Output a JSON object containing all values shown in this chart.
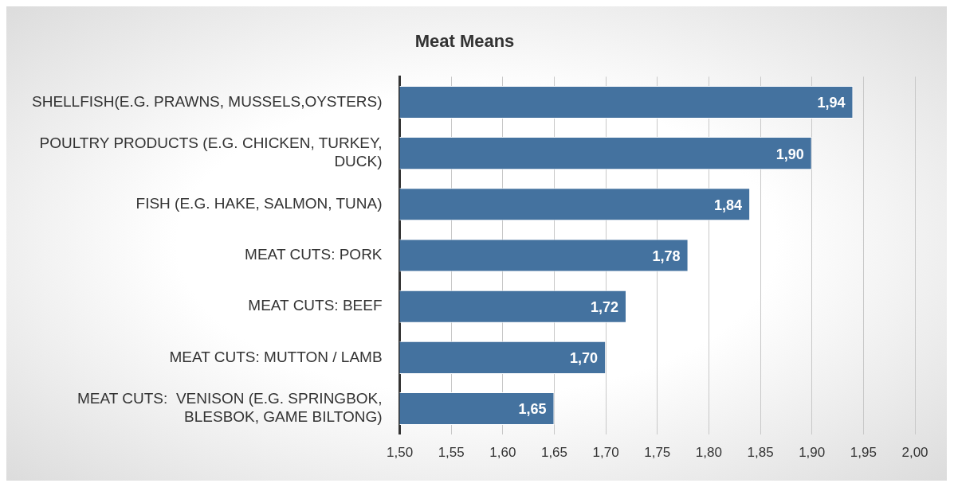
{
  "chart_data": {
    "type": "bar",
    "orientation": "horizontal",
    "title": "Meat Means",
    "categories": [
      "SHELLFISH(E.G. PRAWNS, MUSSELS,OYSTERS)",
      "POULTRY PRODUCTS (E.G. CHICKEN, TURKEY, DUCK)",
      "FISH (E.G. HAKE, SALMON, TUNA)",
      "MEAT CUTS: PORK",
      "MEAT CUTS: BEEF",
      "MEAT CUTS: MUTTON / LAMB",
      "MEAT CUTS:  VENISON (E.G. SPRINGBOK, BLESBOK, GAME BILTONG)"
    ],
    "values": [
      1.94,
      1.9,
      1.84,
      1.78,
      1.72,
      1.7,
      1.65
    ],
    "value_labels": [
      "1,94",
      "1,90",
      "1,84",
      "1,78",
      "1,72",
      "1,70",
      "1,65"
    ],
    "color": "#44729f",
    "xlim": [
      1.5,
      2.0
    ],
    "xticks": [
      {
        "value": 1.5,
        "label": "1,50"
      },
      {
        "value": 1.55,
        "label": "1,55"
      },
      {
        "value": 1.6,
        "label": "1,60"
      },
      {
        "value": 1.65,
        "label": "1,65"
      },
      {
        "value": 1.7,
        "label": "1,70"
      },
      {
        "value": 1.75,
        "label": "1,75"
      },
      {
        "value": 1.8,
        "label": "1,80"
      },
      {
        "value": 1.85,
        "label": "1,85"
      },
      {
        "value": 1.9,
        "label": "1,90"
      },
      {
        "value": 1.95,
        "label": "1,95"
      },
      {
        "value": 2.0,
        "label": "2,00"
      }
    ],
    "grid": "x",
    "legend": false
  }
}
